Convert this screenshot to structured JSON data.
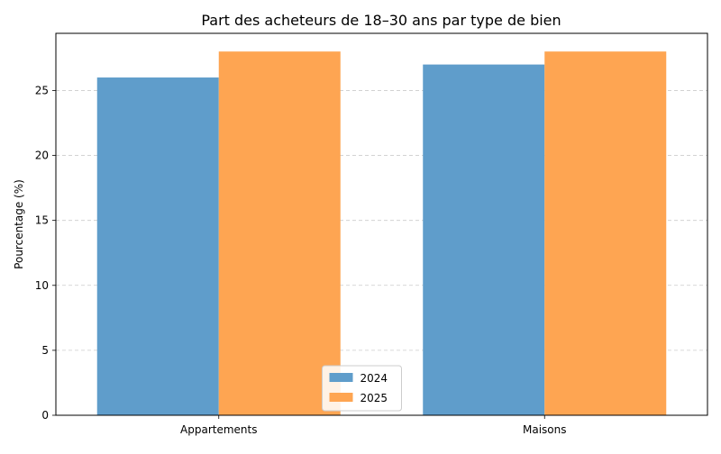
{
  "chart_data": {
    "type": "bar",
    "title": "Part des acheteurs de 18–30 ans par type de bien",
    "xlabel": "",
    "ylabel": "Pourcentage (%)",
    "categories": [
      "Appartements",
      "Maisons"
    ],
    "series": [
      {
        "name": "2024",
        "values": [
          26,
          27
        ],
        "color": "#5f9dcb"
      },
      {
        "name": "2025",
        "values": [
          28,
          28
        ],
        "color": "#fea552"
      }
    ],
    "ylim": [
      0,
      29.4
    ],
    "yticks": [
      0,
      5,
      10,
      15,
      20,
      25
    ],
    "grid": "horizontal dashed",
    "legend_position": "bottom-center"
  }
}
